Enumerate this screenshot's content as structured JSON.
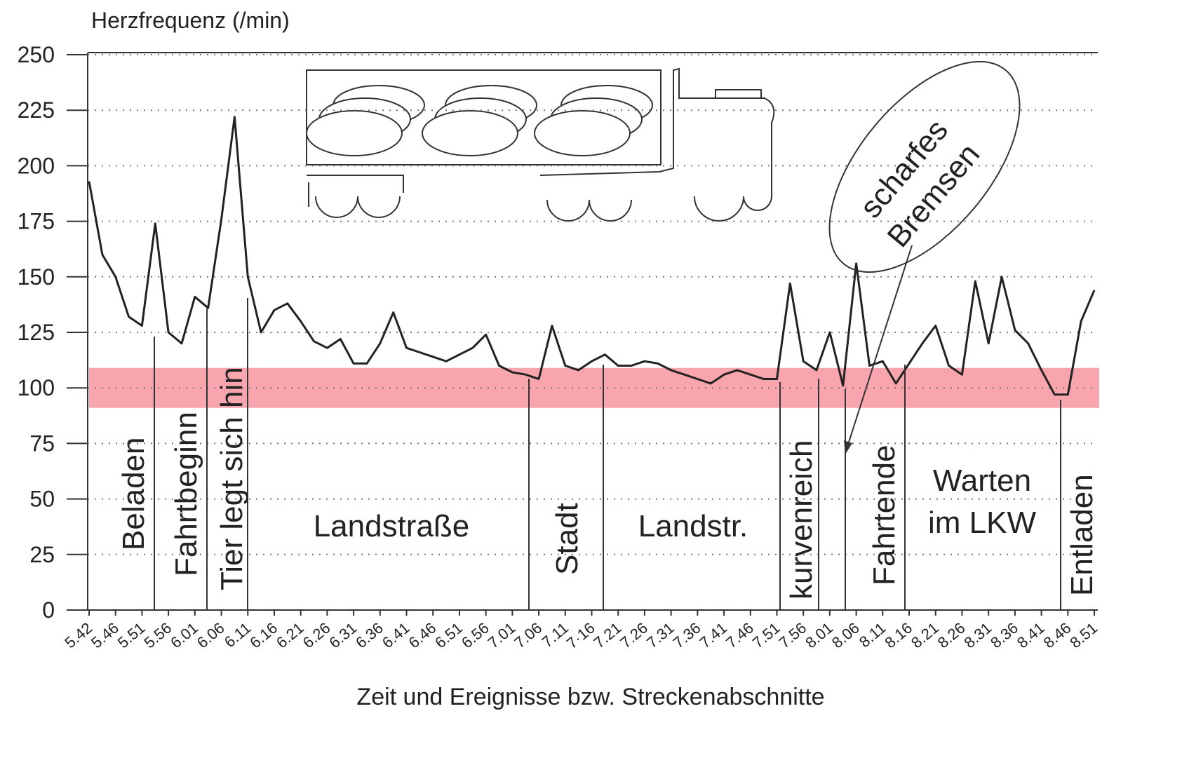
{
  "chart_data": {
    "type": "line",
    "y_label": "Herzfrequenz (/min)",
    "x_label": "Zeit und Ereignisse bzw. Streckenabschnitte",
    "categories": [
      "5.42",
      null,
      "5.46",
      null,
      "5.51",
      null,
      "5.56",
      null,
      "6.01",
      null,
      "6.06",
      null,
      "6.11",
      null,
      "6.16",
      null,
      "6.21",
      null,
      "6.26",
      null,
      "6.31",
      null,
      "6.36",
      null,
      "6.41",
      null,
      "6.46",
      null,
      "6.51",
      null,
      "6.56",
      null,
      "7.01",
      null,
      "7.06",
      null,
      "7.11",
      null,
      "7·16",
      null,
      "7.21",
      null,
      "7.26",
      null,
      "7.31",
      null,
      "7.36",
      null,
      "7.41",
      null,
      "7.46",
      null,
      "7.51",
      null,
      "7.56",
      null,
      "8.01",
      null,
      "8.06",
      null,
      "8.11",
      null,
      "8.16",
      null,
      "8.21",
      null,
      "8.26",
      null,
      "8.31",
      null,
      "8.36",
      null,
      "8.41",
      null,
      "8.46",
      null,
      "8.51"
    ],
    "values": [
      193,
      160,
      150,
      132,
      128,
      174,
      125,
      120,
      141,
      136,
      176,
      222,
      150,
      125,
      135,
      138,
      130,
      121,
      118,
      122,
      111,
      111,
      120,
      134,
      118,
      116,
      114,
      112,
      115,
      118,
      124,
      110,
      107,
      106,
      104,
      128,
      110,
      108,
      112,
      115,
      110,
      110,
      112,
      111,
      108,
      106,
      104,
      102,
      106,
      108,
      106,
      104,
      104,
      147,
      112,
      108,
      125,
      101,
      156,
      110,
      112,
      102,
      111,
      120,
      128,
      110,
      106,
      148,
      120,
      150,
      126,
      120,
      108,
      97,
      97,
      130,
      144
    ],
    "color": "#222222",
    "ylim": [
      0,
      250
    ],
    "yticks": [
      0,
      25,
      50,
      75,
      100,
      125,
      150,
      175,
      200,
      225,
      250
    ],
    "grid": true,
    "highlight_band": {
      "range": [
        91,
        109
      ],
      "color": "#f8a5ad"
    },
    "segments": [
      {
        "lines": [
          "Beladen"
        ]
      },
      {
        "lines": [
          "Fahrtbeginn"
        ]
      },
      {
        "lines": [
          "Tier legt sich hin"
        ]
      },
      {
        "lines": [
          "Landstraße"
        ]
      },
      {
        "lines": [
          "Stadt"
        ]
      },
      {
        "lines": [
          "Landstr."
        ]
      },
      {
        "lines": [
          "kurvenreich"
        ]
      },
      {
        "lines": [
          "Fahrtende"
        ]
      },
      {
        "lines": [
          "Warten",
          "im LKW"
        ]
      },
      {
        "lines": [
          "Entladen"
        ]
      }
    ],
    "annotation": {
      "lines": [
        "scharfes",
        "Bremsen"
      ]
    }
  }
}
